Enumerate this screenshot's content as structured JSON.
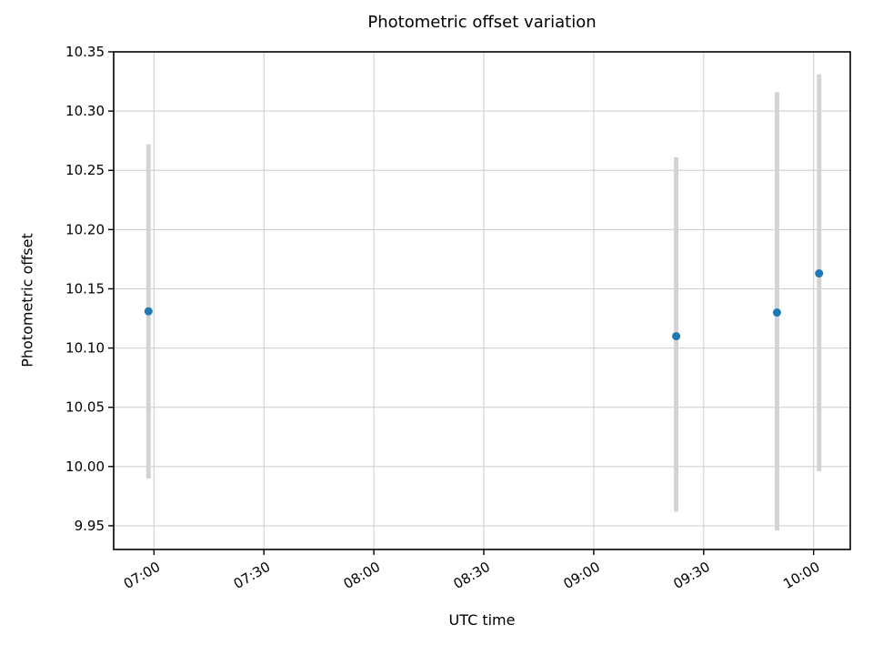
{
  "chart_data": {
    "type": "scatter",
    "title": "Photometric offset variation",
    "xlabel": "UTC time",
    "ylabel": "Photometric offset",
    "grid": true,
    "grid_color": "#cccccc",
    "x_tick_labels": [
      "07:00",
      "07:30",
      "08:00",
      "08:30",
      "09:00",
      "09:30",
      "10:00"
    ],
    "x_tick_minutes": [
      420,
      450,
      480,
      510,
      540,
      570,
      600
    ],
    "xlim_minutes": [
      409,
      610
    ],
    "y_ticks": [
      9.95,
      10.0,
      10.05,
      10.1,
      10.15,
      10.2,
      10.25,
      10.3,
      10.35
    ],
    "ylim": [
      9.93,
      10.35
    ],
    "series": [
      {
        "name": "photometric-offset-measurements",
        "marker_color": "#1f77b4",
        "errorbar_color": "#d3d3d3",
        "points": [
          {
            "utc": "06:58",
            "minutes": 418.5,
            "value": 10.131,
            "err_low": 9.99,
            "err_high": 10.272
          },
          {
            "utc": "09:23",
            "minutes": 562.5,
            "value": 10.11,
            "err_low": 9.962,
            "err_high": 10.261
          },
          {
            "utc": "09:50",
            "minutes": 590.0,
            "value": 10.13,
            "err_low": 9.946,
            "err_high": 10.316
          },
          {
            "utc": "10:01",
            "minutes": 601.5,
            "value": 10.163,
            "err_low": 9.996,
            "err_high": 10.331
          }
        ]
      }
    ]
  }
}
